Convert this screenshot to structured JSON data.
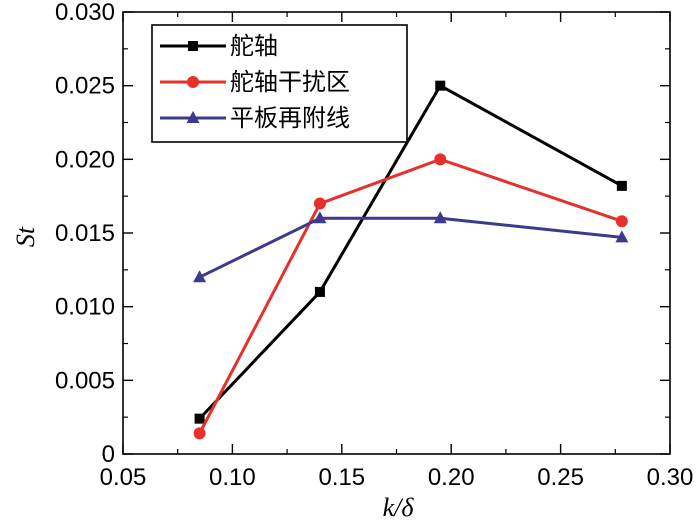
{
  "chart_data": {
    "type": "line",
    "xlabel": "k/δ",
    "ylabel": "St",
    "xlim": [
      0.05,
      0.3
    ],
    "ylim": [
      0.0,
      0.03
    ],
    "x_ticks": [
      0.05,
      0.1,
      0.15,
      0.2,
      0.25,
      0.3
    ],
    "x_tick_labels": [
      "0.05",
      "0.10",
      "0.15",
      "0.20",
      "0.25",
      "0.30"
    ],
    "y_ticks": [
      0.0,
      0.005,
      0.01,
      0.015,
      0.02,
      0.025,
      0.03
    ],
    "y_tick_labels": [
      "0",
      "0.005",
      "0.010",
      "0.015",
      "0.020",
      "0.025",
      "0.030"
    ],
    "legend_position": "top-left",
    "grid": false,
    "series": [
      {
        "name": "舵轴",
        "color": "#000000",
        "marker": "square",
        "x": [
          0.085,
          0.14,
          0.195,
          0.278
        ],
        "y": [
          0.0024,
          0.011,
          0.025,
          0.0182
        ]
      },
      {
        "name": "舵轴干扰区",
        "color": "#e8302a",
        "marker": "circle",
        "x": [
          0.085,
          0.14,
          0.195,
          0.278
        ],
        "y": [
          0.0014,
          0.017,
          0.02,
          0.0158
        ]
      },
      {
        "name": "平板再附线",
        "color": "#3b3a8c",
        "marker": "triangle",
        "x": [
          0.085,
          0.14,
          0.195,
          0.278
        ],
        "y": [
          0.012,
          0.016,
          0.016,
          0.0147
        ]
      }
    ]
  }
}
